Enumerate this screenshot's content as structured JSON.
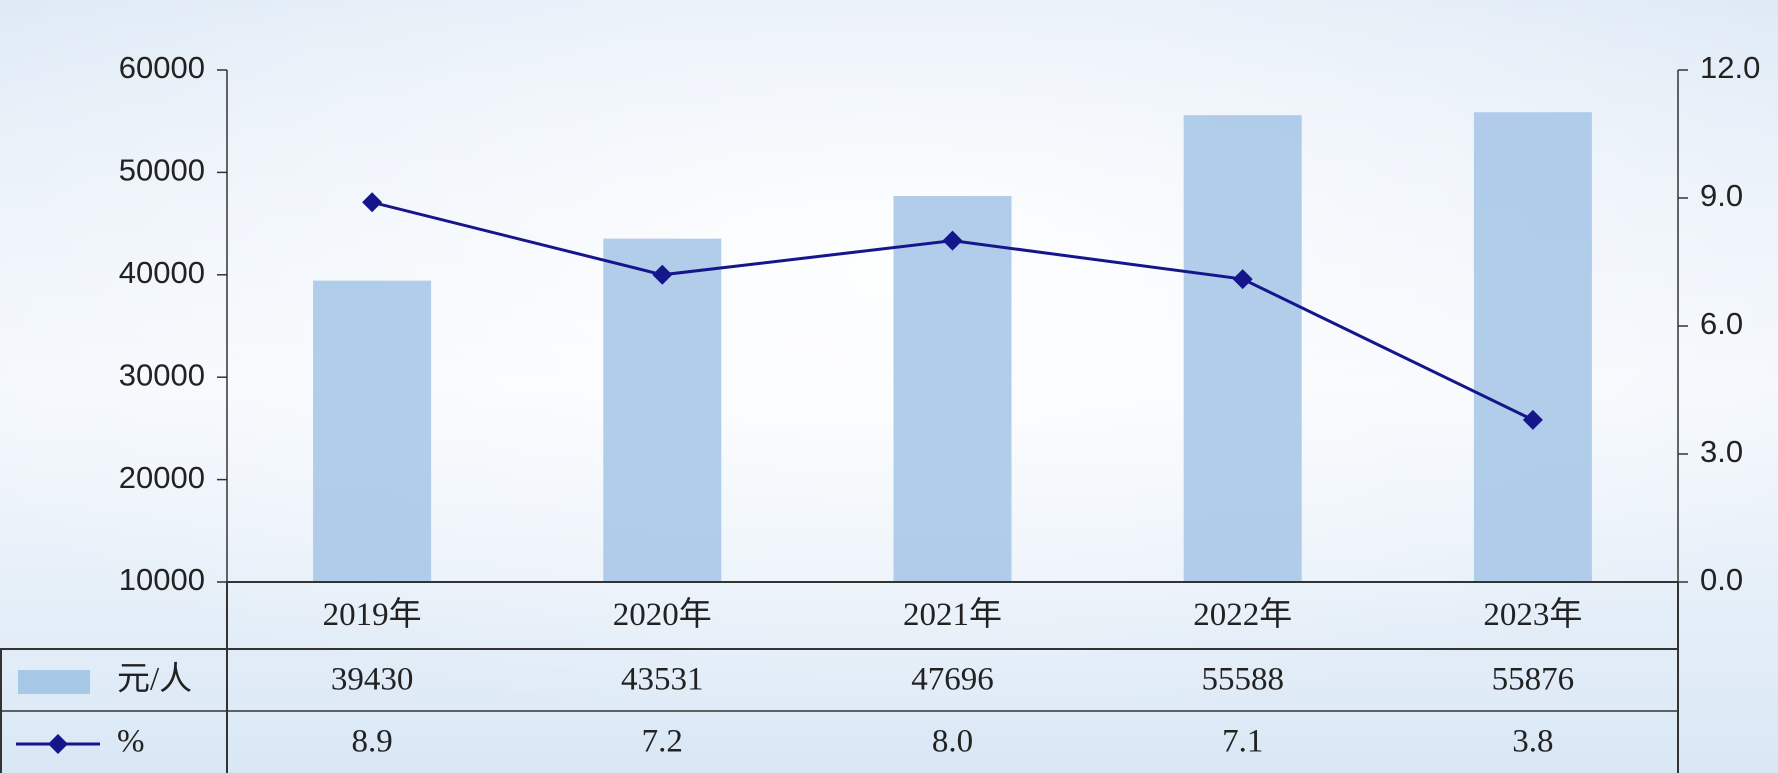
{
  "chart_data": {
    "type": "combo",
    "categories": [
      "2019年",
      "2020年",
      "2021年",
      "2022年",
      "2023年"
    ],
    "series": [
      {
        "name": "元/人",
        "type": "bar",
        "color": "#a8c8e8",
        "values": [
          39430,
          43531,
          47696,
          55588,
          55876
        ]
      },
      {
        "name": "%",
        "type": "line",
        "axis": "y2",
        "color": "#16168c",
        "values": [
          8.9,
          7.2,
          8.0,
          7.1,
          3.8
        ],
        "value_labels": [
          "8.9",
          "7.2",
          "8.0",
          "7.1",
          "3.8"
        ]
      }
    ],
    "ylim": [
      10000,
      60000
    ],
    "yticks": [
      10000,
      20000,
      30000,
      40000,
      50000,
      60000
    ],
    "y2lim": [
      0,
      12
    ],
    "y2ticks": [
      {
        "value": 0,
        "label": "0.0"
      },
      {
        "value": 3,
        "label": "3.0"
      },
      {
        "value": 6,
        "label": "6.0"
      },
      {
        "value": 9,
        "label": "9.0"
      },
      {
        "value": 12,
        "label": "12.0"
      }
    ]
  }
}
